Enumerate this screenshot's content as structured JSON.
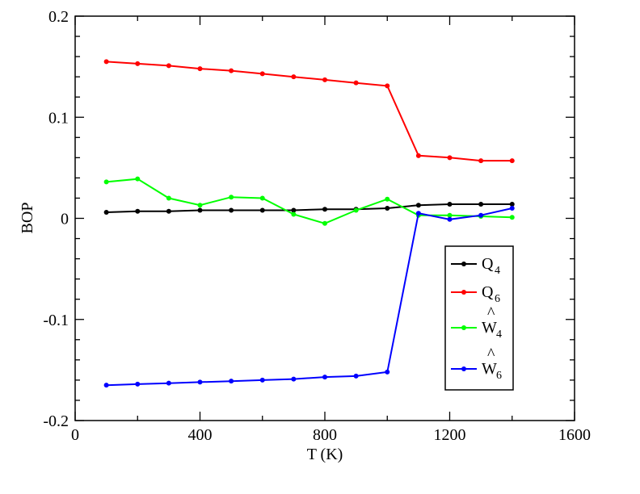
{
  "chart_data": {
    "type": "line",
    "xlabel": "T (K)",
    "ylabel": "BOP",
    "xlim": [
      0,
      1600
    ],
    "ylim": [
      -0.2,
      0.2
    ],
    "x_ticks": [
      "0",
      "400",
      "800",
      "1200",
      "1600"
    ],
    "y_ticks": [
      "-0.2",
      "-0.1",
      "0",
      "0.1",
      "0.2"
    ],
    "grid": false,
    "legend_position": "right",
    "x": [
      100,
      200,
      300,
      400,
      500,
      600,
      700,
      800,
      900,
      1000,
      1100,
      1200,
      1300,
      1400
    ],
    "series": [
      {
        "name": "Q4",
        "label_main": "Q",
        "label_sub": "4",
        "hat": false,
        "color": "#000000",
        "values": [
          0.006,
          0.007,
          0.007,
          0.008,
          0.008,
          0.008,
          0.008,
          0.009,
          0.009,
          0.01,
          0.013,
          0.014,
          0.014,
          0.014
        ]
      },
      {
        "name": "Q6",
        "label_main": "Q",
        "label_sub": "6",
        "hat": false,
        "color": "#ff0000",
        "values": [
          0.155,
          0.153,
          0.151,
          0.148,
          0.146,
          0.143,
          0.14,
          0.137,
          0.134,
          0.131,
          0.062,
          0.06,
          0.057,
          0.057
        ]
      },
      {
        "name": "Ŵ4",
        "label_main": "W",
        "label_sub": "4",
        "hat": true,
        "color": "#00ff00",
        "values": [
          0.036,
          0.039,
          0.02,
          0.013,
          0.021,
          0.02,
          0.004,
          -0.005,
          0.008,
          0.019,
          0.003,
          0.003,
          0.002,
          0.001
        ]
      },
      {
        "name": "Ŵ6",
        "label_main": "W",
        "label_sub": "6",
        "hat": true,
        "color": "#0000ff",
        "values": [
          -0.165,
          -0.164,
          -0.163,
          -0.162,
          -0.161,
          -0.16,
          -0.159,
          -0.157,
          -0.156,
          -0.152,
          0.005,
          -0.001,
          0.003,
          0.01
        ]
      }
    ]
  }
}
